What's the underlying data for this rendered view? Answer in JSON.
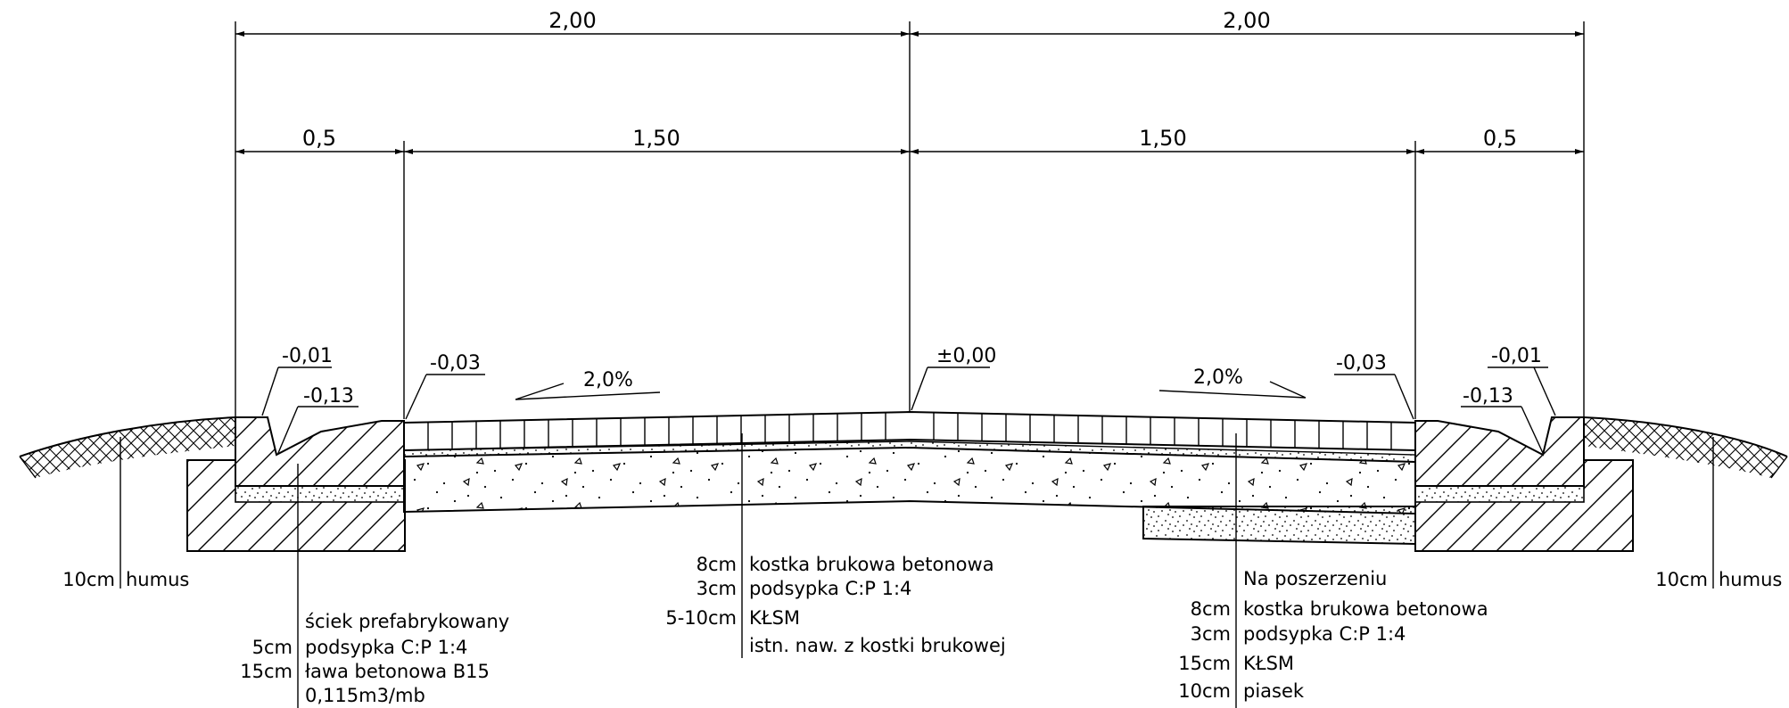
{
  "dimensions": {
    "top_left": "2,00",
    "top_right": "2,00",
    "curb_left": "0,5",
    "walk_left": "1,50",
    "walk_right": "1,50",
    "curb_right": "0,5"
  },
  "levels": {
    "left_top": "-0,01",
    "left_gutter": "-0,13",
    "left_edge": "-0,03",
    "center": "±0,00",
    "right_edge": "-0,03",
    "right_top": "-0,01",
    "right_gutter": "-0,13"
  },
  "slopes": {
    "left": "2,0%",
    "right": "2,0%"
  },
  "humus_left": {
    "thickness": "10cm",
    "material": "humus"
  },
  "humus_right": {
    "thickness": "10cm",
    "material": "humus"
  },
  "gutter_layers": {
    "title": "ściek prefabrykowany",
    "rows": [
      {
        "thickness": "5cm",
        "material": "podsypka C:P 1:4"
      },
      {
        "thickness": "15cm",
        "material": "ława betonowa B15"
      },
      {
        "thickness": "",
        "material": "0,115m3/mb"
      }
    ]
  },
  "center_layers": {
    "rows": [
      {
        "thickness": "8cm",
        "material": "kostka brukowa betonowa"
      },
      {
        "thickness": "3cm",
        "material": "podsypka C:P 1:4"
      },
      {
        "thickness": "5-10cm",
        "material": "KŁSM"
      },
      {
        "thickness": "",
        "material": "istn. naw. z kostki brukowej"
      }
    ]
  },
  "widening_layers": {
    "title": "Na poszerzeniu",
    "rows": [
      {
        "thickness": "8cm",
        "material": "kostka brukowa betonowa"
      },
      {
        "thickness": "3cm",
        "material": "podsypka C:P 1:4"
      },
      {
        "thickness": "15cm",
        "material": "KŁSM"
      },
      {
        "thickness": "10cm",
        "material": "piasek"
      }
    ]
  }
}
